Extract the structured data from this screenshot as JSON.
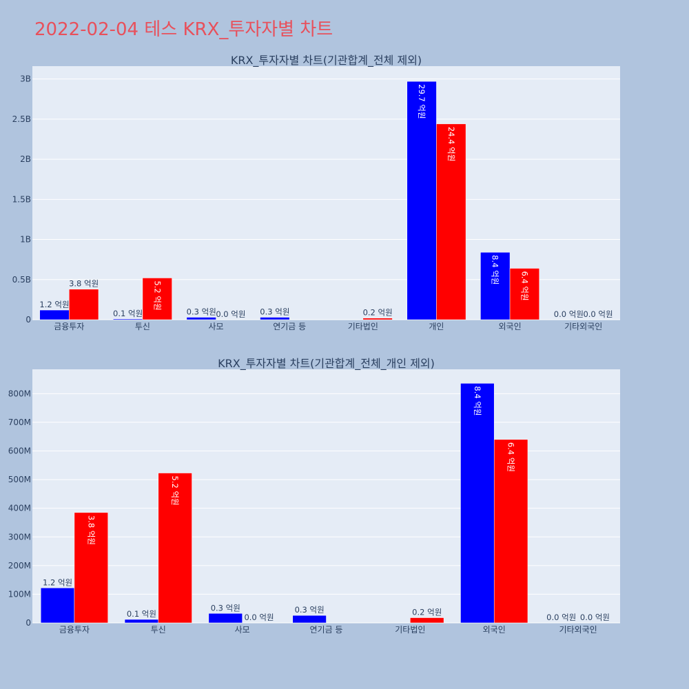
{
  "page": {
    "title": "2022-02-04 테스 KRX_투자자별 차트"
  },
  "colors": {
    "buy": "#0000ff",
    "sell": "#ff0000",
    "title": "#e8505b",
    "page_bg": "#b0c4de",
    "plot_bg": "#e5ecf6"
  },
  "chart_data": [
    {
      "type": "bar",
      "title": "KRX_투자자별 차트(기관합계_전체 제외)",
      "categories": [
        "금융투자",
        "투신",
        "사모",
        "연기금 등",
        "기타법인",
        "개인",
        "외국인",
        "기타외국인"
      ],
      "yticks": [
        {
          "value": 0,
          "label": "0"
        },
        {
          "value": 500000000,
          "label": "0.5B"
        },
        {
          "value": 1000000000,
          "label": "1B"
        },
        {
          "value": 1500000000,
          "label": "1.5B"
        },
        {
          "value": 2000000000,
          "label": "2B"
        },
        {
          "value": 2500000000,
          "label": "2.5B"
        },
        {
          "value": 3000000000,
          "label": "3B"
        }
      ],
      "ylim": [
        0,
        3160000000
      ],
      "grid": true,
      "series": [
        {
          "color": "#0000ff",
          "values": [
            120000000,
            10000000,
            30000000,
            30000000,
            0,
            2970000000,
            840000000,
            0
          ],
          "labels": [
            "1.2 억원",
            "0.1 억원",
            "0.3 억원",
            "0.3 억원",
            "",
            "29.7 억원",
            "8.4 억원",
            "0.0 억원"
          ]
        },
        {
          "color": "#ff0000",
          "values": [
            380000000,
            520000000,
            0,
            0,
            20000000,
            2440000000,
            640000000,
            0
          ],
          "labels": [
            "3.8 억원",
            "5.2 억원",
            "0.0 억원",
            "",
            "0.2 억원",
            "24.4 억원",
            "6.4 억원",
            "0.0 억원"
          ]
        }
      ]
    },
    {
      "type": "bar",
      "title": "KRX_투자자별 차트(기관합계_전체_개인 제외)",
      "categories": [
        "금융투자",
        "투신",
        "사모",
        "연기금 등",
        "기타법인",
        "외국인",
        "기타외국인"
      ],
      "yticks": [
        {
          "value": 0,
          "label": "0"
        },
        {
          "value": 100000000,
          "label": "100M"
        },
        {
          "value": 200000000,
          "label": "200M"
        },
        {
          "value": 300000000,
          "label": "300M"
        },
        {
          "value": 400000000,
          "label": "400M"
        },
        {
          "value": 500000000,
          "label": "500M"
        },
        {
          "value": 600000000,
          "label": "600M"
        },
        {
          "value": 700000000,
          "label": "700M"
        },
        {
          "value": 800000000,
          "label": "800M"
        }
      ],
      "ylim": [
        0,
        885000000
      ],
      "grid": true,
      "series": [
        {
          "color": "#0000ff",
          "values": [
            122000000,
            12000000,
            33000000,
            26000000,
            0,
            836000000,
            0
          ],
          "labels": [
            "1.2 억원",
            "0.1 억원",
            "0.3 억원",
            "0.3 억원",
            "",
            "8.4 억원",
            "0.0 억원"
          ]
        },
        {
          "color": "#ff0000",
          "values": [
            385000000,
            523000000,
            0,
            0,
            18000000,
            640000000,
            0
          ],
          "labels": [
            "3.8 억원",
            "5.2 억원",
            "0.0 억원",
            "",
            "0.2 억원",
            "6.4 억원",
            "0.0 억원"
          ]
        }
      ]
    }
  ]
}
